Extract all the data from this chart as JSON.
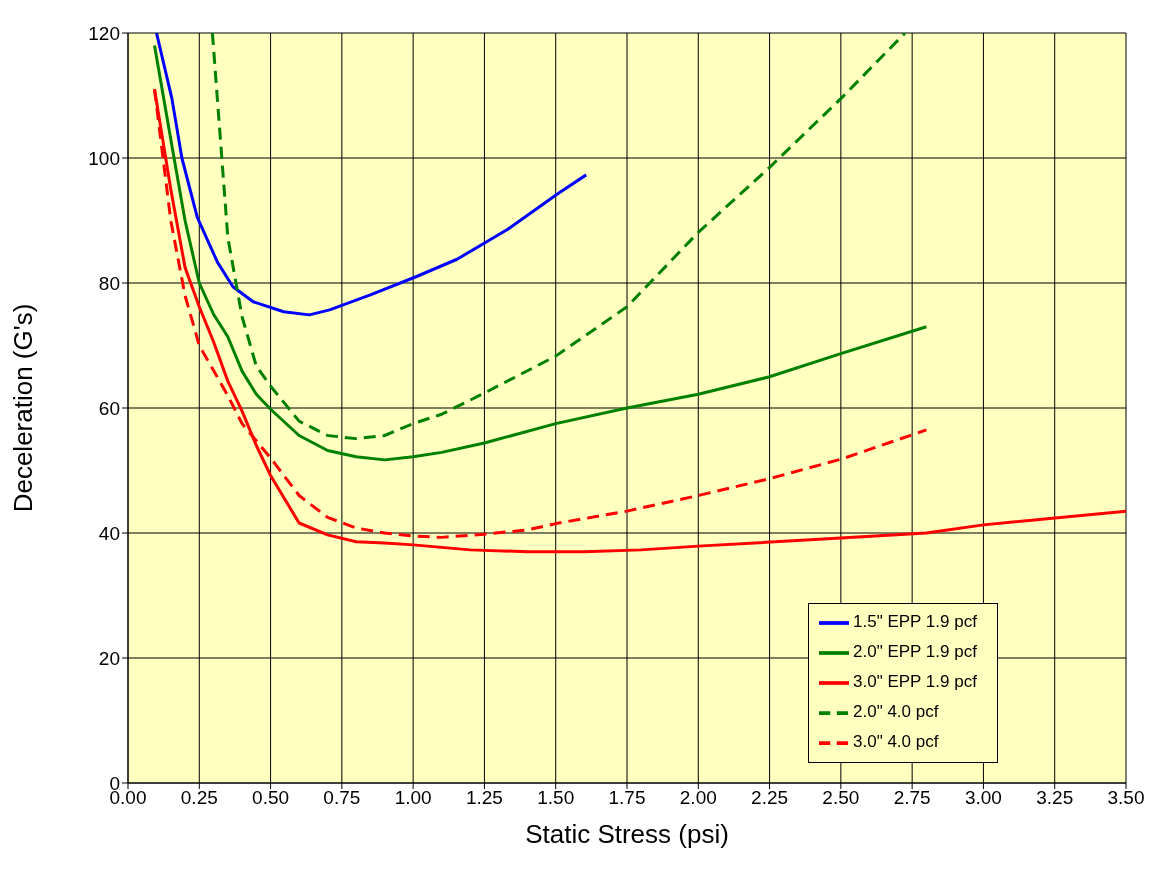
{
  "chart_data": {
    "type": "line",
    "xlabel": "Static Stress (psi)",
    "ylabel": "Deceleration (G's)",
    "xlim": [
      0,
      3.5
    ],
    "xticks": [
      {
        "value": 0,
        "label": "0.00"
      },
      {
        "value": 0.25,
        "label": "0.25"
      },
      {
        "value": 0.5,
        "label": "0.50"
      },
      {
        "value": 0.75,
        "label": "0.75"
      },
      {
        "value": 1,
        "label": "1.00"
      },
      {
        "value": 1.25,
        "label": "1.25"
      },
      {
        "value": 1.5,
        "label": "1.50"
      },
      {
        "value": 1.75,
        "label": "1.75"
      },
      {
        "value": 2,
        "label": "2.00"
      },
      {
        "value": 2.25,
        "label": "2.25"
      },
      {
        "value": 2.5,
        "label": "2.50"
      },
      {
        "value": 2.75,
        "label": "2.75"
      },
      {
        "value": 3,
        "label": "3.00"
      },
      {
        "value": 3.25,
        "label": "3.25"
      },
      {
        "value": 3.5,
        "label": "3.50"
      }
    ],
    "ylim": [
      0,
      120
    ],
    "yticks": [
      0,
      20,
      40,
      60,
      80,
      100,
      120
    ],
    "grid": true,
    "legend": "bottom right",
    "marker": "none",
    "series": [
      {
        "name": "1.5\" EPP 1.9 pcf",
        "color": "#0000ff",
        "line_style": "solid",
        "x": [
          0.1,
          0.154,
          0.189,
          0.243,
          0.314,
          0.368,
          0.439,
          0.546,
          0.636,
          0.707,
          0.85,
          1.01,
          1.154,
          1.332,
          1.511,
          1.607
        ],
        "values": [
          120,
          109.5,
          100,
          90.5,
          83.3,
          79.4,
          77,
          75.4,
          74.9,
          75.7,
          78.1,
          81,
          83.8,
          88.6,
          94.4,
          97.3
        ]
      },
      {
        "name": "2.0\" EPP 1.9 pcf",
        "color": "#008000",
        "line_style": "solid",
        "x": [
          0.093,
          0.15,
          0.2,
          0.25,
          0.3,
          0.35,
          0.4,
          0.45,
          0.5,
          0.6,
          0.7,
          0.8,
          0.9,
          1.0,
          1.1,
          1.25,
          1.5,
          1.75,
          2.0,
          2.25,
          2.5,
          2.8
        ],
        "values": [
          118,
          103,
          90,
          80,
          75,
          71.4,
          65.9,
          62.2,
          59.8,
          55.6,
          53.2,
          52.2,
          51.7,
          52.2,
          52.9,
          54.4,
          57.5,
          60,
          62.2,
          65,
          68.7,
          73
        ]
      },
      {
        "name": "3.0\" EPP 1.9 pcf",
        "color": "#ff0000",
        "line_style": "solid",
        "x": [
          0.093,
          0.15,
          0.2,
          0.25,
          0.3,
          0.35,
          0.4,
          0.45,
          0.5,
          0.6,
          0.7,
          0.8,
          0.9,
          1.0,
          1.2,
          1.4,
          1.6,
          1.8,
          2.0,
          2.5,
          2.8,
          3.0,
          3.5
        ],
        "values": [
          111,
          95,
          82.5,
          76.2,
          70.6,
          64.3,
          59.5,
          54,
          49.2,
          41.6,
          39.7,
          38.6,
          38.4,
          38.1,
          37.3,
          37,
          37,
          37.3,
          37.9,
          39.2,
          40,
          41.3,
          43.5
        ]
      },
      {
        "name": "2.0\" 4.0 pcf",
        "color": "#008000",
        "line_style": "dashed",
        "x": [
          0.296,
          0.35,
          0.4,
          0.45,
          0.5,
          0.6,
          0.7,
          0.8,
          0.9,
          1.0,
          1.1,
          1.25,
          1.5,
          1.75,
          2.0,
          2.25,
          2.5,
          2.725
        ],
        "values": [
          120,
          87.3,
          74.6,
          66.7,
          63.5,
          57.9,
          55.6,
          55.1,
          55.6,
          57.5,
          59,
          62.4,
          68.3,
          76.2,
          88.1,
          98.5,
          109.5,
          120
        ]
      },
      {
        "name": "3.0\" 4.0 pcf",
        "color": "#ff0000",
        "line_style": "dashed",
        "x": [
          0.093,
          0.15,
          0.2,
          0.25,
          0.3,
          0.35,
          0.4,
          0.5,
          0.6,
          0.7,
          0.8,
          0.9,
          1.0,
          1.1,
          1.25,
          1.4,
          1.5,
          1.75,
          2.0,
          2.25,
          2.5,
          2.8
        ],
        "values": [
          111,
          90,
          78,
          70,
          66,
          62,
          57.5,
          52,
          46,
          42.5,
          40.8,
          40,
          39.5,
          39.3,
          39.8,
          40.5,
          41.5,
          43.5,
          46,
          48.7,
          51.8,
          56.5
        ]
      }
    ]
  }
}
